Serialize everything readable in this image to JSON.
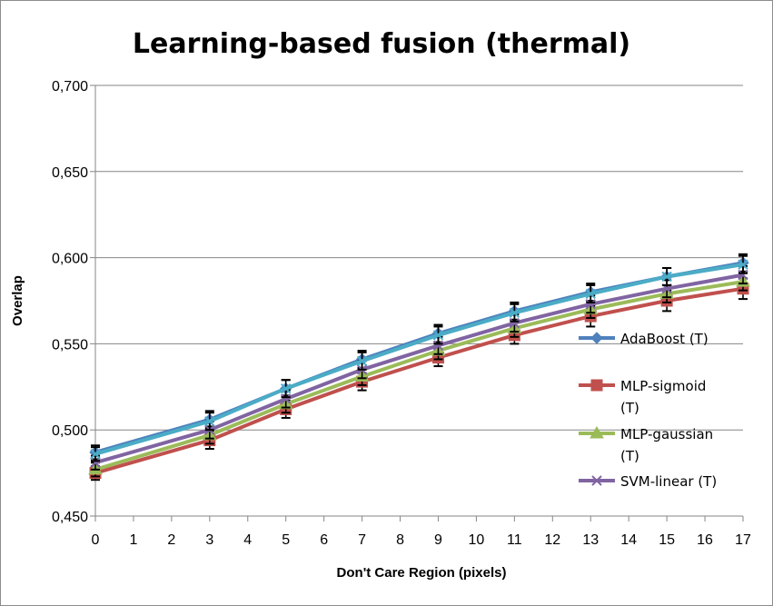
{
  "chart_data": {
    "type": "line",
    "title": "Learning-based fusion (thermal)",
    "xlabel": "Don't Care Region (pixels)",
    "ylabel": "Overlap",
    "x_ticks": [
      "0",
      "1",
      "2",
      "3",
      "4",
      "5",
      "6",
      "7",
      "8",
      "9",
      "10",
      "11",
      "12",
      "13",
      "14",
      "15",
      "16",
      "17"
    ],
    "y_ticks": [
      "0,450",
      "0,500",
      "0,550",
      "0,600",
      "0,650",
      "0,700"
    ],
    "xlim": [
      0,
      17
    ],
    "ylim": [
      0.45,
      0.7
    ],
    "grid": "horizontal",
    "legend_position": "right",
    "x": [
      0,
      3,
      5,
      7,
      9,
      11,
      13,
      15,
      17
    ],
    "series": [
      {
        "name": "AdaBoost (T)",
        "color": "#4f81bd",
        "marker": "diamond",
        "values": [
          0.487,
          0.506,
          0.524,
          0.541,
          0.556,
          0.569,
          0.58,
          0.589,
          0.597
        ],
        "error": [
          0.004,
          0.005,
          0.005,
          0.005,
          0.005,
          0.005,
          0.005,
          0.005,
          0.005
        ]
      },
      {
        "name": "MLP-sigmoid (T)",
        "color": "#c0504d",
        "marker": "square",
        "values": [
          0.475,
          0.494,
          0.512,
          0.528,
          0.542,
          0.555,
          0.566,
          0.575,
          0.582
        ],
        "error": [
          0.004,
          0.005,
          0.005,
          0.005,
          0.005,
          0.005,
          0.006,
          0.006,
          0.006
        ]
      },
      {
        "name": "MLP-gaussian (T)",
        "color": "#9bbb59",
        "marker": "triangle",
        "values": [
          0.477,
          0.497,
          0.515,
          0.531,
          0.546,
          0.559,
          0.57,
          0.579,
          0.586
        ],
        "error": [
          0.004,
          0.005,
          0.005,
          0.005,
          0.005,
          0.005,
          0.005,
          0.005,
          0.005
        ]
      },
      {
        "name": "SVM-linear (T)",
        "color": "#8064a2",
        "marker": "x",
        "values": [
          0.481,
          0.5,
          0.518,
          0.535,
          0.549,
          0.562,
          0.573,
          0.582,
          0.59
        ],
        "error": [
          0.004,
          0.005,
          0.005,
          0.005,
          0.005,
          0.005,
          0.005,
          0.005,
          0.005
        ]
      },
      {
        "name": "",
        "color": "#4bacc6",
        "marker": "x",
        "values": [
          0.486,
          0.505,
          0.524,
          0.54,
          0.555,
          0.568,
          0.579,
          0.589,
          0.596
        ],
        "error": [
          0.004,
          0.005,
          0.005,
          0.005,
          0.005,
          0.005,
          0.005,
          0.005,
          0.005
        ]
      }
    ],
    "legend": {
      "lines": [
        [
          "AdaBoost (T)"
        ],
        [
          "MLP-sigmoid",
          "(T)"
        ],
        [
          "MLP-gaussian",
          "(T)"
        ],
        [
          "SVM-linear (T)"
        ]
      ]
    }
  }
}
